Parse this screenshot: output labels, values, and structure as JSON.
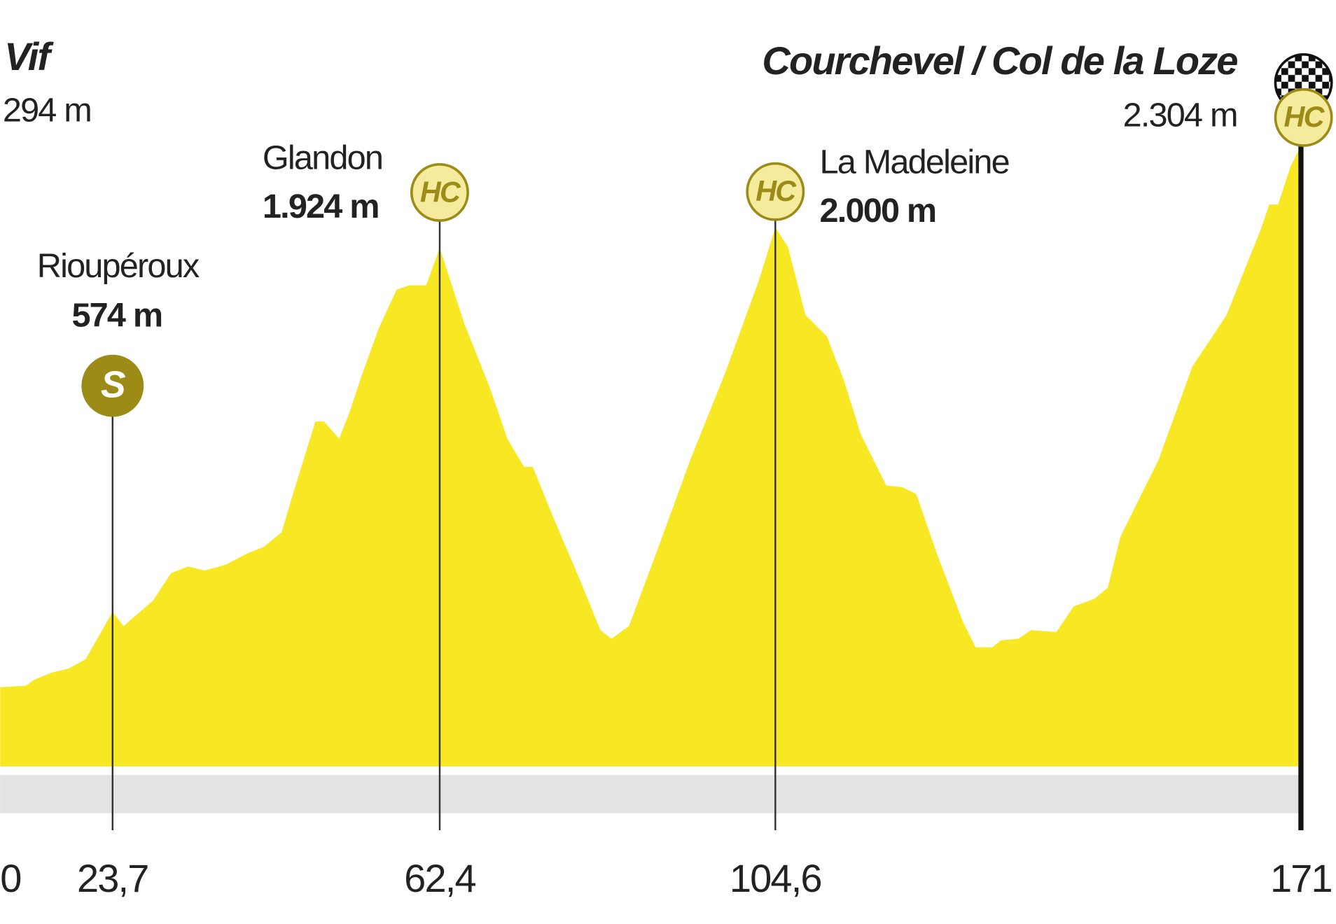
{
  "chart_data": {
    "type": "area",
    "color": "#f7e823",
    "x": [
      0,
      5.4,
      7.2,
      10.8,
      14.4,
      18.0,
      23.7,
      25.0,
      28.5,
      30.6,
      32.6,
      34.6,
      37.1,
      39.6,
      41.6,
      43.7,
      45.2,
      47.7,
      48.7,
      50.5,
      51.7,
      53.2,
      55.2,
      57.3,
      58.8,
      60.8,
      62.4,
      65.5,
      68.7,
      70.9,
      73.0,
      74.1,
      76.8,
      80.0,
      82.6,
      84.0,
      86.2,
      89.6,
      93.9,
      98.2,
      102.5,
      104.6,
      106.2,
      108.4,
      111.1,
      113.2,
      115.4,
      118.6,
      120.7,
      122.4,
      125.0,
      128.3,
      129.9,
      132.0,
      133.1,
      135.3,
      136.9,
      140.1,
      142.3,
      144.9,
      146.6,
      148.2,
      153.0,
      157.3,
      161.6,
      165.9,
      167.0,
      168.1,
      169.7,
      171
    ],
    "values": [
      294,
      300,
      322,
      348,
      363,
      398,
      574,
      521,
      616,
      717,
      742,
      727,
      749,
      790,
      815,
      869,
      1027,
      1280,
      1280,
      1216,
      1311,
      1453,
      1627,
      1769,
      1785,
      1785,
      1924,
      1643,
      1406,
      1216,
      1112,
      1112,
      916,
      695,
      506,
      474,
      521,
      790,
      1137,
      1453,
      1801,
      2000,
      1927,
      1675,
      1596,
      1438,
      1232,
      1043,
      1036,
      1011,
      790,
      537,
      442,
      442,
      468,
      474,
      506,
      499,
      594,
      622,
      664,
      853,
      1137,
      1485,
      1675,
      1991,
      2085,
      2085,
      2227,
      2304
    ],
    "xlim": [
      0,
      171
    ],
    "xticks": [
      0,
      {
        "value": 23.7,
        "label": "23,7"
      },
      {
        "value": 62.4,
        "label": "62,4"
      },
      {
        "value": 104.6,
        "label": "104,6"
      },
      171
    ],
    "ylim": [
      0,
      2844
    ],
    "places": [
      {
        "name": "Vif",
        "km": 0,
        "elevation": 294,
        "elevation_label": "294 m"
      },
      {
        "name": "Rioupéroux",
        "km": 23.7,
        "elevation": 574,
        "elevation_label": "574 m",
        "category": "S"
      },
      {
        "name": "Glandon",
        "km": 62.4,
        "elevation": 1924,
        "elevation_label": "1.924 m",
        "category": "HC"
      },
      {
        "name": "La Madeleine",
        "km": 104.6,
        "elevation": 2000,
        "elevation_label": "2.000 m",
        "category": "HC"
      },
      {
        "name": "Courchevel / Col de la Loze",
        "km": 171,
        "elevation": 2304,
        "elevation_label": "2.304 m",
        "category": "HC"
      }
    ]
  }
}
